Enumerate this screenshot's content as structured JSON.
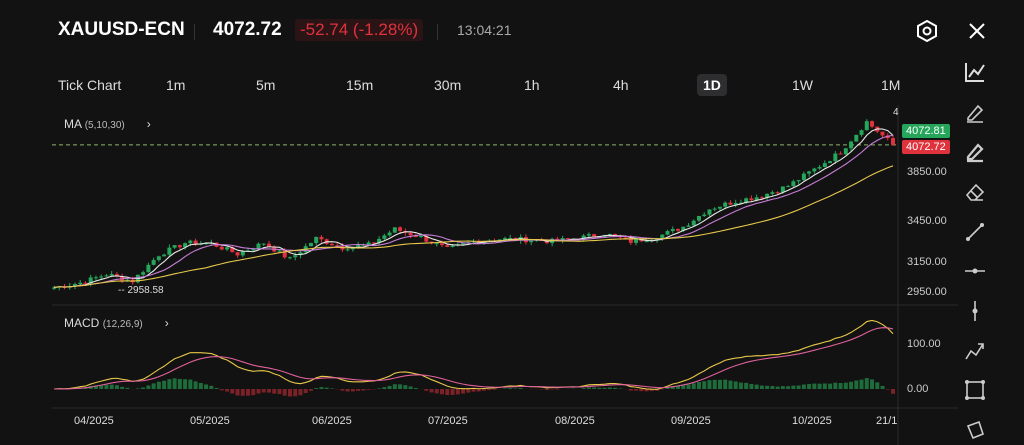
{
  "header": {
    "symbol": "XAUUSD-ECN",
    "price": "4072.72",
    "change": "-52.74 (-1.28%)",
    "time": "13:04:21"
  },
  "timeframes": [
    {
      "label": "Tick Chart"
    },
    {
      "label": "1m"
    },
    {
      "label": "5m"
    },
    {
      "label": "15m"
    },
    {
      "label": "30m"
    },
    {
      "label": "1h"
    },
    {
      "label": "4h"
    },
    {
      "label": "1D",
      "active": true
    },
    {
      "label": "1W"
    },
    {
      "label": "1M"
    }
  ],
  "indicators": {
    "ma": {
      "name": "MA",
      "params": "(5,10,30)"
    },
    "macd": {
      "name": "MACD",
      "params": "(12,26,9)"
    }
  },
  "price_axis": [
    "3850.00",
    "3450.00",
    "3150.00",
    "2950.00"
  ],
  "macd_axis": [
    "100.00",
    "0.00"
  ],
  "price_tags": {
    "ask": "4072.81",
    "bid": "4072.72",
    "low_marker": "2958.58",
    "high_marker": "4"
  },
  "x_labels": [
    "04/2025",
    "05/2025",
    "06/2025",
    "07/2025",
    "08/2025",
    "09/2025",
    "10/2025",
    "21/1"
  ],
  "colors": {
    "up": "#26a65b",
    "down": "#e0323c",
    "ma5": "#e8e8e8",
    "ma10": "#c77dd8",
    "ma30": "#e6c84a",
    "macd": "#e6c84a",
    "signal": "#e0609a"
  },
  "chart_data": {
    "type": "candlestick",
    "interval": "1D",
    "symbol": "XAUUSD-ECN",
    "weekly_closes": [
      2985,
      3020,
      3085,
      3035,
      3235,
      3325,
      3320,
      3240,
      3325,
      3200,
      3360,
      3290,
      3310,
      3430,
      3368,
      3275,
      3337,
      3355,
      3350,
      3337,
      3362,
      3397,
      3336,
      3371,
      3448,
      3586,
      3643,
      3685,
      3760,
      3887,
      4018,
      4250,
      4072.72
    ],
    "period": "2025-03-14 to 2025-10-21",
    "low": 2958.58,
    "last": 4072.72
  }
}
